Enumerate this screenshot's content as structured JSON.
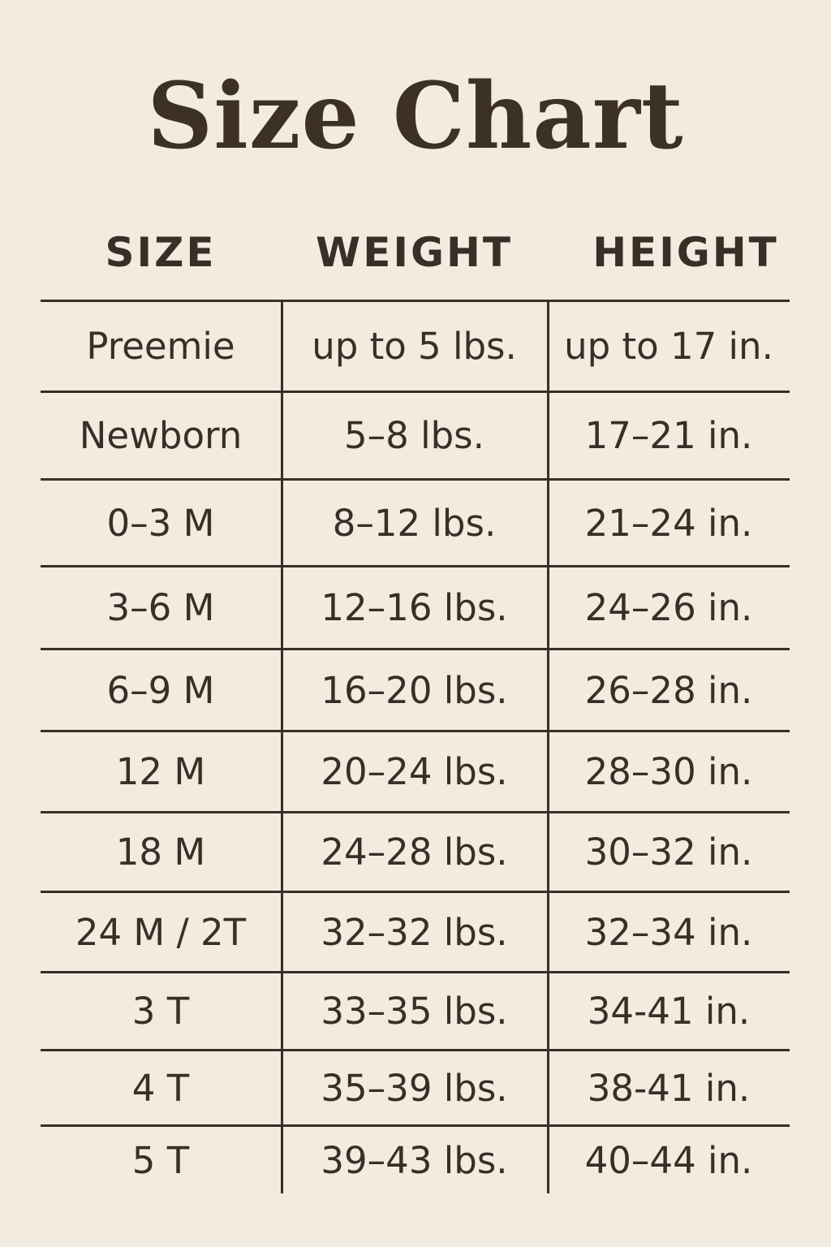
{
  "title": "Size Chart",
  "headers": [
    "SIZE",
    "WEIGHT",
    "HEIGHT"
  ],
  "rows": [
    [
      "Preemie",
      "up to 5 lbs.",
      "up to 17 in."
    ],
    [
      "Newborn",
      "5–8 lbs.",
      "17–21 in."
    ],
    [
      "0–3 M",
      "8–12 lbs.",
      "21–24 in."
    ],
    [
      "3–6 M",
      "12–16 lbs.",
      "24–26 in."
    ],
    [
      "6–9 M",
      "16–20 lbs.",
      "26–28 in."
    ],
    [
      "12 M",
      "20–24 lbs.",
      "28–30 in."
    ],
    [
      "18 M",
      "24–28 lbs.",
      "30–32 in."
    ],
    [
      "24 M / 2T",
      "32–32 lbs.",
      "32–34 in."
    ],
    [
      "3 T",
      "33–35 lbs.",
      "34-41 in."
    ],
    [
      "4 T",
      "35–39 lbs.",
      "38-41 in."
    ],
    [
      "5 T",
      "39–43 lbs.",
      "40–44 in."
    ]
  ],
  "colors": {
    "background": "#f2ebe0",
    "text": "#3a2e26"
  }
}
